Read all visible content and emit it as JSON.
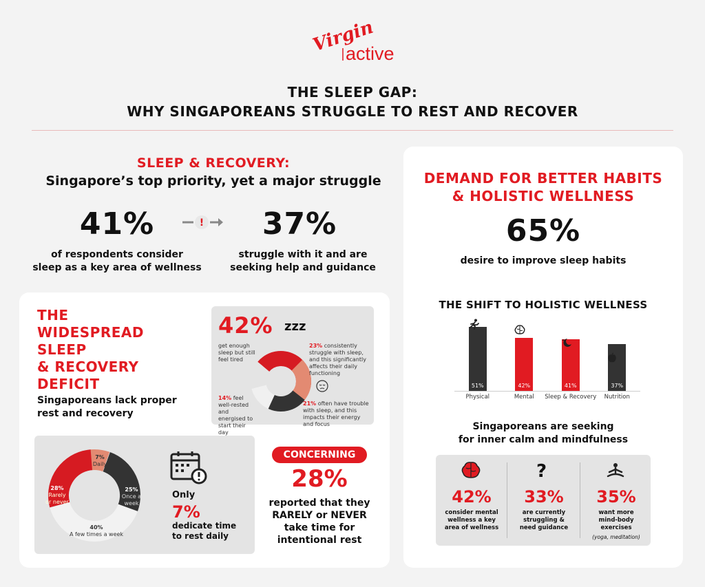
{
  "brand": {
    "name_top": "Virgin",
    "name_bottom": "active",
    "color": "#e11b22"
  },
  "title_line1": "THE SLEEP GAP:",
  "title_line2": "WHY SINGAPOREANS STRUGGLE TO REST AND RECOVER",
  "sleep_recovery": {
    "heading": "SLEEP & RECOVERY:",
    "subheading": "Singapore’s top priority, yet a major struggle",
    "stat1_value": "41%",
    "stat1_caption_l1": "of respondents consider",
    "stat1_caption_l2": "sleep as a key area of wellness",
    "stat2_value": "37%",
    "stat2_caption_l1": "struggle with it and are",
    "stat2_caption_l2": "seeking help and guidance"
  },
  "deficit": {
    "title_l1": "THE",
    "title_l2": "WIDESPREAD",
    "title_l3": "SLEEP",
    "title_l4": "& RECOVERY",
    "title_l5": "DEFICIT",
    "subtitle_l1": "Singaporeans lack proper",
    "subtitle_l2": "rest and recovery",
    "donut1": {
      "big_pct": "42%",
      "zzz": "zᴢᴢ",
      "left_top": "get enough sleep but still feel tired",
      "right_top_pct": "23%",
      "right_top": "consistently struggle with sleep, and this significantly affects their daily functioning",
      "left_bottom_pct": "14%",
      "left_bottom": "feel well-rested and energised to start their day",
      "right_bottom_pct": "21%",
      "right_bottom": "often have trouble with sleep, and this impacts their energy and focus"
    },
    "donut2": {
      "slices": [
        {
          "label": "Daily",
          "value": "7%"
        },
        {
          "label": "Once a week",
          "value": "25%"
        },
        {
          "label": "A few times a week",
          "value": "40%"
        },
        {
          "label": "Rarely or never",
          "value": "28%"
        }
      ],
      "only": "Only",
      "pct": "7%",
      "caption_l1": "dedicate time",
      "caption_l2": "to rest daily"
    },
    "concerning": {
      "badge": "CONCERNING",
      "pct": "28%",
      "l1": "reported that they",
      "l2": "RARELY or NEVER",
      "l3": "take time for",
      "l4": "intentional rest"
    }
  },
  "demand": {
    "title_l1": "DEMAND FOR BETTER HABITS",
    "title_l2": "& HOLISTIC WELLNESS",
    "pct": "65%",
    "caption": "desire to improve sleep habits",
    "shift_title": "THE SHIFT TO HOLISTIC WELLNESS",
    "inner_l1": "Singaporeans are seeking",
    "inner_l2": "for inner calm and mindfulness",
    "stats": [
      {
        "pct": "42%",
        "l1": "consider mental",
        "l2": "wellness a key",
        "l3": "area of wellness",
        "note": ""
      },
      {
        "pct": "33%",
        "l1": "are currently",
        "l2": "struggling &",
        "l3": "need guidance",
        "note": ""
      },
      {
        "pct": "35%",
        "l1": "want more",
        "l2": "mind-body",
        "l3": "exercises",
        "note": "(yoga, meditation)"
      }
    ]
  },
  "chart_data": {
    "type": "bar",
    "title": "THE SHIFT TO HOLISTIC WELLNESS",
    "categories": [
      "Physical",
      "Mental",
      "Sleep & Recovery",
      "Nutrition"
    ],
    "values": [
      51,
      42,
      41,
      37
    ],
    "value_labels": [
      "51%",
      "42%",
      "41%",
      "37%"
    ],
    "colors": [
      "#333333",
      "#e11b22",
      "#e11b22",
      "#333333"
    ],
    "ylim": [
      0,
      55
    ],
    "grid": false
  }
}
